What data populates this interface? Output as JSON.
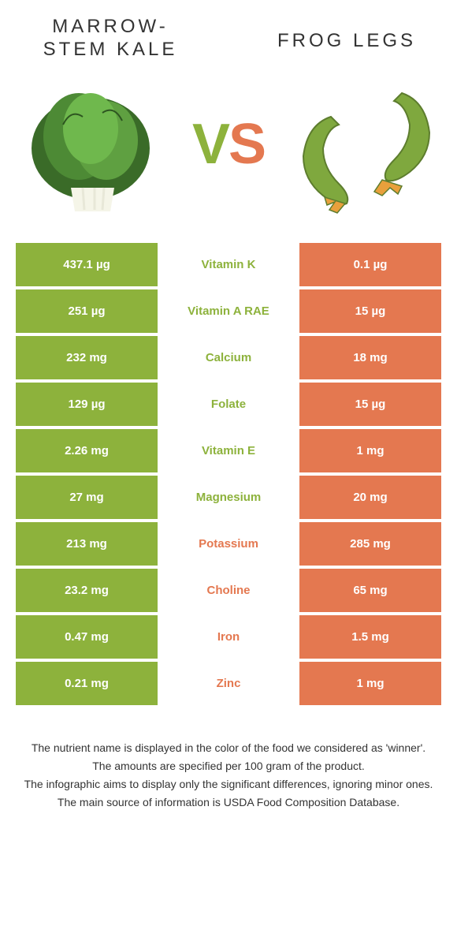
{
  "left_food": {
    "title": "Marrow-\nstem Kale",
    "color": "#8db23c"
  },
  "right_food": {
    "title": "Frog legs",
    "color": "#e47850"
  },
  "vs": {
    "v": "V",
    "s": "S"
  },
  "rows": [
    {
      "left": "437.1 µg",
      "label": "Vitamin K",
      "right": "0.1 µg",
      "winner": "left"
    },
    {
      "left": "251 µg",
      "label": "Vitamin A RAE",
      "right": "15 µg",
      "winner": "left"
    },
    {
      "left": "232 mg",
      "label": "Calcium",
      "right": "18 mg",
      "winner": "left"
    },
    {
      "left": "129 µg",
      "label": "Folate",
      "right": "15 µg",
      "winner": "left"
    },
    {
      "left": "2.26 mg",
      "label": "Vitamin E",
      "right": "1 mg",
      "winner": "left"
    },
    {
      "left": "27 mg",
      "label": "Magnesium",
      "right": "20 mg",
      "winner": "left"
    },
    {
      "left": "213 mg",
      "label": "Potassium",
      "right": "285 mg",
      "winner": "right"
    },
    {
      "left": "23.2 mg",
      "label": "Choline",
      "right": "65 mg",
      "winner": "right"
    },
    {
      "left": "0.47 mg",
      "label": "Iron",
      "right": "1.5 mg",
      "winner": "right"
    },
    {
      "left": "0.21 mg",
      "label": "Zinc",
      "right": "1 mg",
      "winner": "right"
    }
  ],
  "footer": [
    "The nutrient name is displayed in the color of the food we considered as 'winner'.",
    "The amounts are specified per 100 gram of the product.",
    "The infographic aims to display only the significant differences, ignoring minor ones.",
    "The main source of information is USDA Food Composition Database."
  ],
  "colors": {
    "left": "#8db23c",
    "right": "#e47850",
    "bg": "#ffffff",
    "text": "#333333"
  }
}
